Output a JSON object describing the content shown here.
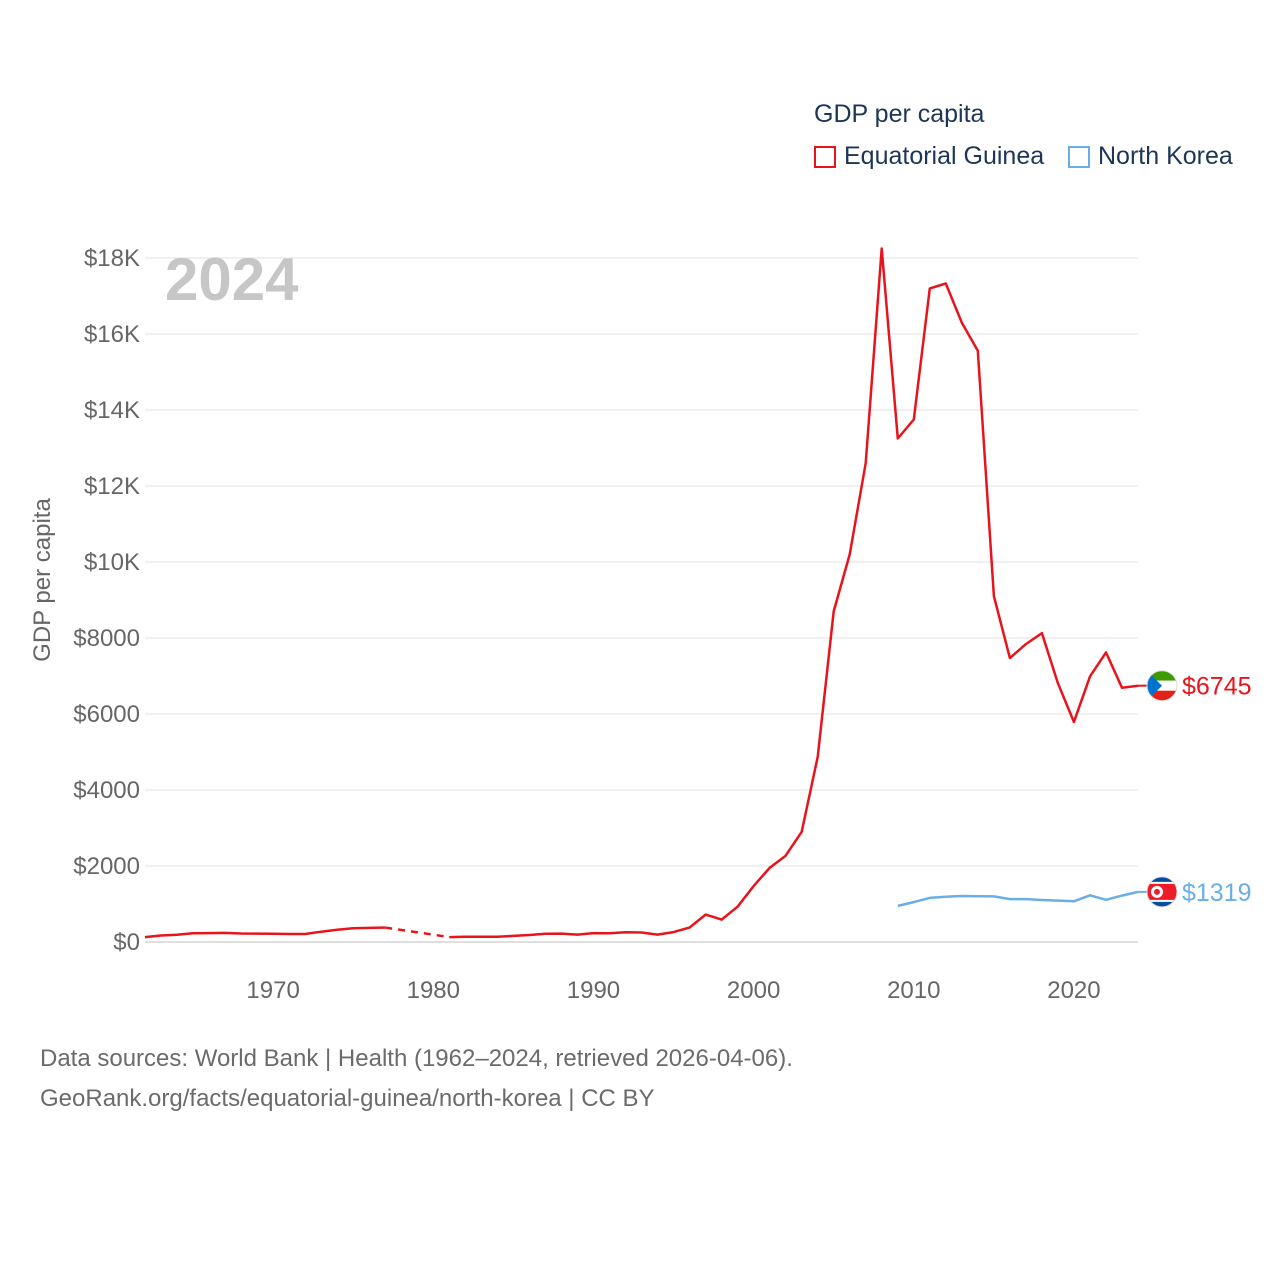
{
  "chart_data": {
    "type": "line",
    "title": "GDP per capita",
    "ylabel": "GDP per capita",
    "xlabel": "",
    "year_label": "2024",
    "xlim": [
      1962,
      2024
    ],
    "ylim": [
      0,
      18000
    ],
    "x_ticks": [
      1970,
      1980,
      1990,
      2000,
      2010,
      2020
    ],
    "y_ticks": [
      {
        "value": 0,
        "label": "$0"
      },
      {
        "value": 2000,
        "label": "$2000"
      },
      {
        "value": 4000,
        "label": "$4000"
      },
      {
        "value": 6000,
        "label": "$6000"
      },
      {
        "value": 8000,
        "label": "$8000"
      },
      {
        "value": 10000,
        "label": "$10K"
      },
      {
        "value": 12000,
        "label": "$12K"
      },
      {
        "value": 14000,
        "label": "$14K"
      },
      {
        "value": 16000,
        "label": "$16K"
      },
      {
        "value": 18000,
        "label": "$18K"
      }
    ],
    "legend_position": "top-right",
    "series": [
      {
        "name": "Equatorial Guinea",
        "color": "#e8141c",
        "end_label": "$6745",
        "gap": [
          1977,
          1981
        ],
        "x": [
          1962,
          1963,
          1964,
          1965,
          1966,
          1967,
          1968,
          1969,
          1970,
          1971,
          1972,
          1973,
          1974,
          1975,
          1976,
          1977,
          1981,
          1982,
          1983,
          1984,
          1985,
          1986,
          1987,
          1988,
          1989,
          1990,
          1991,
          1992,
          1993,
          1994,
          1995,
          1996,
          1997,
          1998,
          1999,
          2000,
          2001,
          2002,
          2003,
          2004,
          2005,
          2006,
          2007,
          2008,
          2009,
          2010,
          2011,
          2012,
          2013,
          2014,
          2015,
          2016,
          2017,
          2018,
          2019,
          2020,
          2021,
          2022,
          2023,
          2024
        ],
        "values": [
          130,
          170,
          190,
          230,
          235,
          240,
          225,
          220,
          215,
          210,
          210,
          270,
          320,
          360,
          370,
          380,
          130,
          140,
          140,
          140,
          160,
          185,
          215,
          220,
          195,
          235,
          230,
          255,
          250,
          195,
          260,
          380,
          720,
          590,
          930,
          1470,
          1950,
          2270,
          2900,
          4870,
          8700,
          10200,
          12600,
          18250,
          13250,
          13750,
          17200,
          17330,
          16300,
          15560,
          9100,
          7470,
          7840,
          8130,
          6810,
          5790,
          6990,
          7620,
          6690,
          6745
        ]
      },
      {
        "name": "North Korea",
        "color": "#6aaee6",
        "end_label": "$1319",
        "gap": null,
        "x": [
          2009,
          2010,
          2011,
          2012,
          2013,
          2014,
          2015,
          2016,
          2017,
          2018,
          2019,
          2020,
          2021,
          2022,
          2023,
          2024
        ],
        "values": [
          950,
          1050,
          1160,
          1190,
          1210,
          1205,
          1200,
          1130,
          1130,
          1105,
          1090,
          1070,
          1230,
          1110,
          1220,
          1319
        ]
      }
    ]
  },
  "legend": {
    "title": "GDP per capita",
    "items": [
      {
        "label": "Equatorial Guinea",
        "color": "#e8141c"
      },
      {
        "label": "North Korea",
        "color": "#6aaee6"
      }
    ]
  },
  "footer": {
    "line1": "Data sources: World Bank | Health (1962–2024, retrieved 2026-04-06).",
    "line2": "GeoRank.org/facts/equatorial-guinea/north-korea | CC BY"
  }
}
